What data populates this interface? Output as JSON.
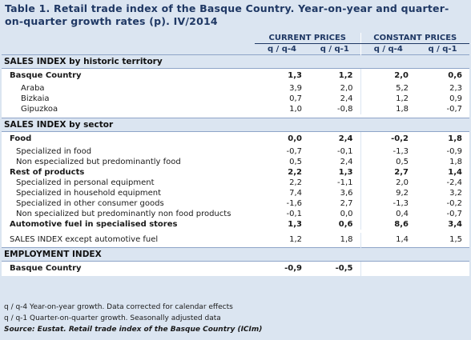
{
  "title_line1": "Table 1. Retail trade index of the Basque Country. Year-on-year and quarter-",
  "title_line2": "on-quarter growth rates (p). IV/2014",
  "headers": {
    "current_prices": "CURRENT PRICES",
    "constant_prices": "CONSTANT PRICES",
    "yoy": "q / q-4",
    "qoq": "q / q-1"
  },
  "sections": {
    "territory": "SALES INDEX by historic territory",
    "sector": "SALES INDEX by sector",
    "employment": "EMPLOYMENT INDEX"
  },
  "rows": {
    "basque_country": {
      "label": "Basque Country",
      "v": [
        "1,3",
        "1,2",
        "2,0",
        "0,6"
      ]
    },
    "araba": {
      "label": "Araba",
      "v": [
        "3,9",
        "2,0",
        "5,2",
        "2,3"
      ]
    },
    "bizkaia": {
      "label": "Bizkaia",
      "v": [
        "0,7",
        "2,4",
        "1,2",
        "0,9"
      ]
    },
    "gipuzkoa": {
      "label": "Gipuzkoa",
      "v": [
        "1,0",
        "-0,8",
        "1,8",
        "-0,7"
      ]
    },
    "food": {
      "label": "Food",
      "v": [
        "0,0",
        "2,4",
        "-0,2",
        "1,8"
      ]
    },
    "spec_food": {
      "label": "Specialized in food",
      "v": [
        "-0,7",
        "-0,1",
        "-1,3",
        "-0,9"
      ]
    },
    "nonspec_food": {
      "label": "Non especialized but predominantly food",
      "v": [
        "0,5",
        "2,4",
        "0,5",
        "1,8"
      ]
    },
    "rest": {
      "label": "Rest of products",
      "v": [
        "2,2",
        "1,3",
        "2,7",
        "1,4"
      ]
    },
    "personal": {
      "label": "Specialized in personal equipment",
      "v": [
        "2,2",
        "-1,1",
        "2,0",
        "-2,4"
      ]
    },
    "household": {
      "label": "Specialized in household equipment",
      "v": [
        "7,4",
        "3,6",
        "9,2",
        "3,2"
      ]
    },
    "other": {
      "label": "Specialized in other consumer goods",
      "v": [
        "-1,6",
        "2,7",
        "-1,3",
        "-0,2"
      ]
    },
    "nonspec_nonfood": {
      "label": "Non specialized but predominantly non food products",
      "v": [
        "-0,1",
        "0,0",
        "0,4",
        "-0,7"
      ]
    },
    "automotive": {
      "label": "Automotive fuel in specialised stores",
      "v": [
        "1,3",
        "0,6",
        "8,6",
        "3,4"
      ]
    },
    "except_fuel": {
      "label": "SALES INDEX except automotive fuel",
      "v": [
        "1,2",
        "1,8",
        "1,4",
        "1,5"
      ]
    },
    "employment_bc": {
      "label": "Basque Country",
      "v": [
        "-0,9",
        "-0,5",
        "",
        ""
      ]
    }
  },
  "notes": {
    "yoy": "q / q-4 Year-on-year growth. Data corrected for calendar effects",
    "qoq": "q / q-1 Quarter-on-quarter growth. Seasonally adjusted data",
    "source": "Source: Eustat. Retail trade index of the Basque Country (ICIm)"
  },
  "colors": {
    "background": "#dbe5f1",
    "title": "#1f3864",
    "table_body": "#ffffff"
  }
}
